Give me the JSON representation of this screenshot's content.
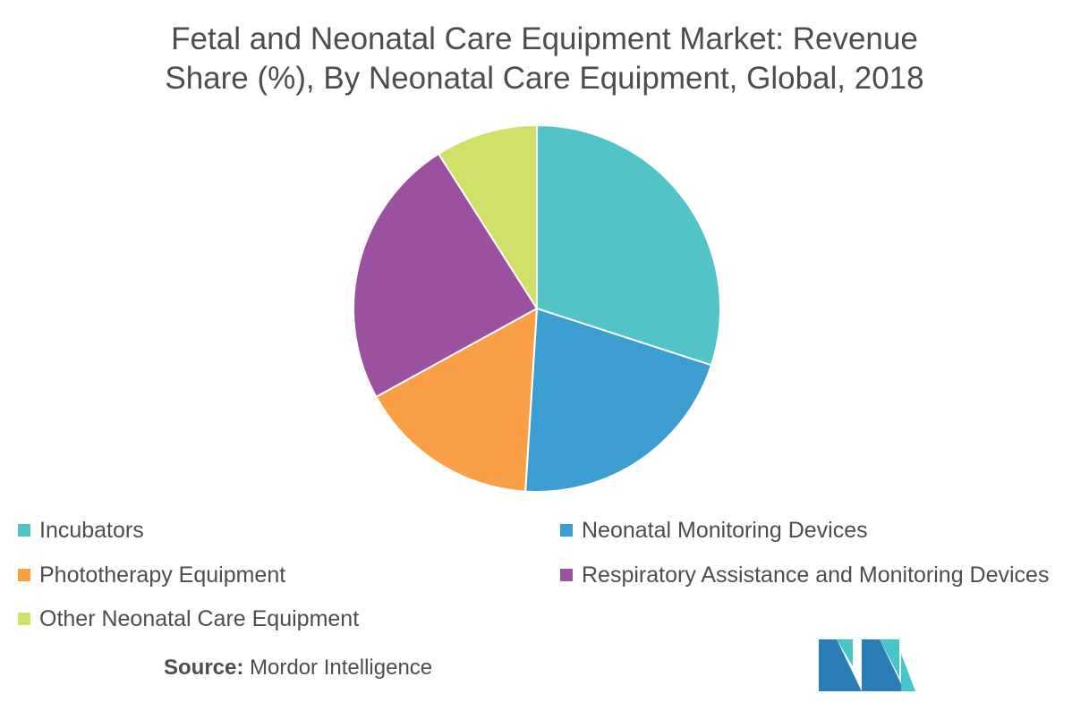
{
  "chart_data": {
    "type": "pie",
    "title_lines": [
      "Fetal and Neonatal Care Equipment Market: Revenue",
      "Share (%), By Neonatal Care Equipment, Global, 2018"
    ],
    "slices": [
      {
        "label": "Incubators",
        "value": 30,
        "color": "#52c4c7"
      },
      {
        "label": "Neonatal Monitoring Devices",
        "value": 21,
        "color": "#3c9dd0"
      },
      {
        "label": "Phototherapy Equipment",
        "value": 16,
        "color": "#fb9f47"
      },
      {
        "label": "Respiratory Assistance and Monitoring Devices",
        "value": 24,
        "color": "#9b51a0"
      },
      {
        "label": "Other Neonatal Care Equipment",
        "value": 9,
        "color": "#d0e068"
      }
    ],
    "legend_placement": "bottom"
  },
  "source": {
    "label": "Source:",
    "text": "Mordor Intelligence"
  },
  "logo": {
    "icon": "mordor-intelligence-logo",
    "colors": [
      "#2a7db6",
      "#47c6c9"
    ]
  }
}
